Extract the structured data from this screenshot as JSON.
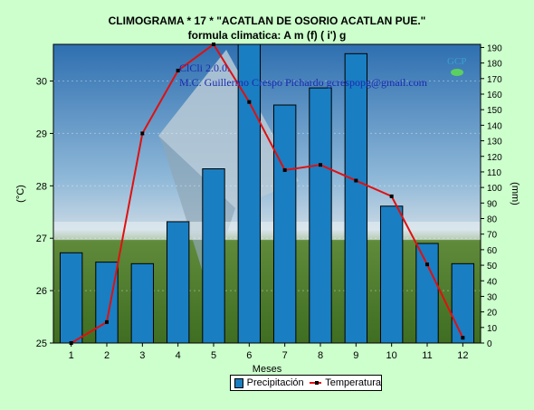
{
  "title_line1": "CLIMOGRAMA  *      17   * \"ACATLAN DE OSORIO  ACATLAN  PUE.\"",
  "title_line2": "formula climatica: A  m (f) ( i') g",
  "watermark": {
    "line1": "ClCli 2.0.0.",
    "line2": "M.C. Guillermo Crespo Pichardo gcrespopg@gmail.com",
    "logo": "GCP"
  },
  "colors": {
    "background": "#ccffcc",
    "bar": "#1a7ec2",
    "line": "#e01010"
  },
  "chart_data": {
    "type": "bar+line",
    "categories": [
      "1",
      "2",
      "3",
      "4",
      "5",
      "6",
      "7",
      "8",
      "9",
      "10",
      "11",
      "12"
    ],
    "xlabel": "Meses",
    "ylabel_left": "(°C)",
    "ylabel_right": "(mm)",
    "ylim_left": [
      25,
      30.7
    ],
    "ylim_right": [
      0,
      192
    ],
    "yticks_left": [
      25,
      26,
      27,
      28,
      29,
      30
    ],
    "yticks_right": [
      0,
      10,
      20,
      30,
      40,
      50,
      60,
      70,
      80,
      90,
      100,
      110,
      120,
      130,
      140,
      150,
      160,
      170,
      180,
      190
    ],
    "series": [
      {
        "name": "Precipitación",
        "type": "bar",
        "axis": "right",
        "values": [
          58,
          52,
          51,
          78,
          112,
          195,
          153,
          164,
          186,
          88,
          64,
          51
        ]
      },
      {
        "name": "Temperatura",
        "type": "line",
        "axis": "left",
        "values": [
          25.0,
          25.4,
          29.0,
          30.2,
          30.7,
          29.6,
          28.3,
          28.4,
          28.1,
          27.8,
          26.5,
          25.1
        ]
      }
    ],
    "legend": "bottom"
  }
}
